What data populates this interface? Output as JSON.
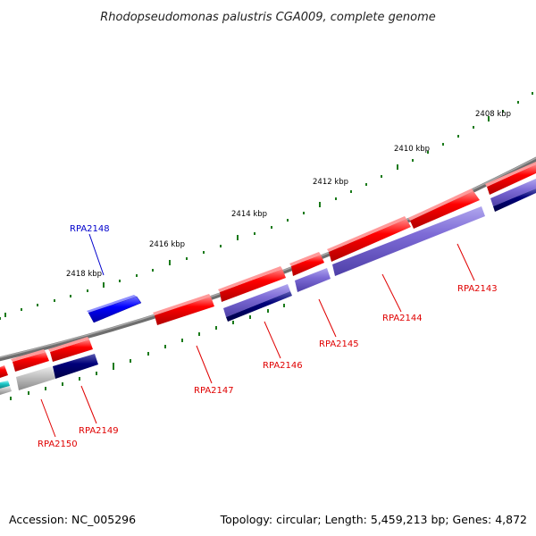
{
  "title": "Rhodopseudomonas palustris CGA009, complete genome",
  "footer": {
    "accession": "Accession: NC_005296",
    "summary": "Topology: circular; Length: 5,459,213 bp; Genes: 4,872"
  },
  "colors": {
    "backbone": "#7a7a7a",
    "tick": "#1a7a1a",
    "forward_gene": "#ff0000",
    "reverse_blue": "#7d6bd6",
    "reverse_navy": "#00007a",
    "reverse_gray": "#bdbdbd",
    "highlight_gene": "#0000ff",
    "label_red": "#e00000",
    "label_blue": "#0000cc"
  },
  "scale_labels": [
    "2408 kbp",
    "2410 kbp",
    "2412 kbp",
    "2414 kbp",
    "2416 kbp",
    "2418 kbp"
  ],
  "gene_labels": [
    {
      "name": "RPA2148",
      "color": "blue"
    },
    {
      "name": "RPA2143",
      "color": "red"
    },
    {
      "name": "RPA2144",
      "color": "red"
    },
    {
      "name": "RPA2145",
      "color": "red"
    },
    {
      "name": "RPA2146",
      "color": "red"
    },
    {
      "name": "RPA2147",
      "color": "red"
    },
    {
      "name": "RPA2149",
      "color": "red"
    },
    {
      "name": "RPA2150",
      "color": "red"
    }
  ]
}
